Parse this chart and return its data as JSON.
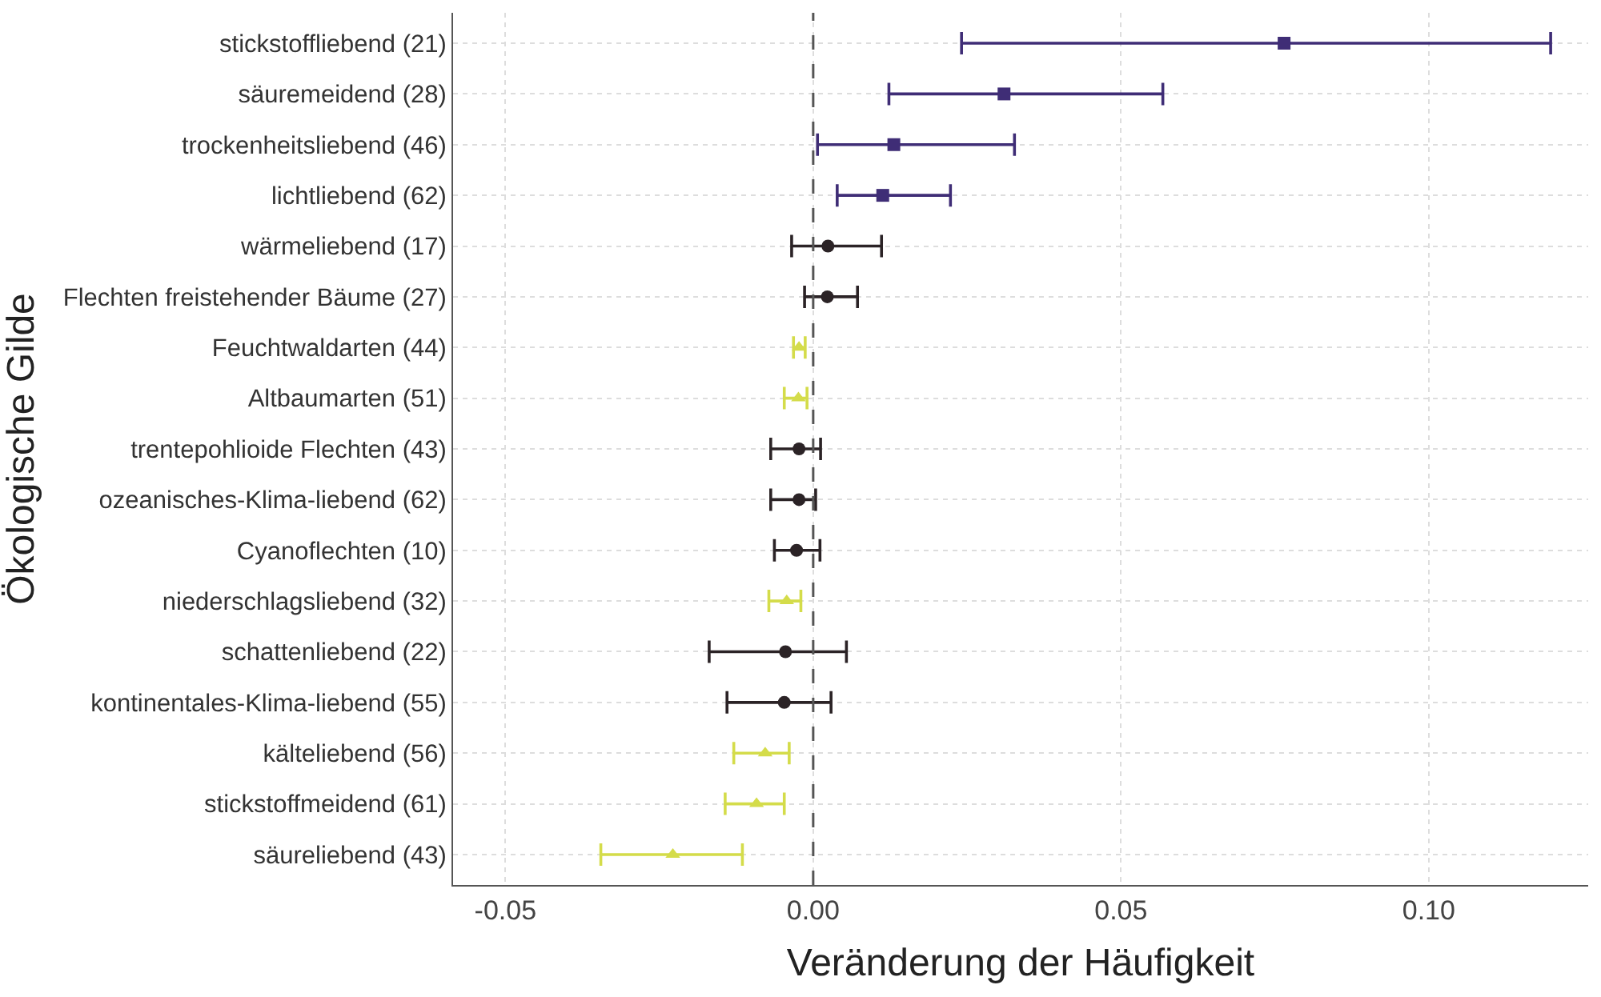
{
  "chart_data": {
    "type": "scatter",
    "orientation": "horizontal",
    "xlabel": "Veränderung der Häufigkeit",
    "ylabel": "Ökologische Gilde",
    "categories": [
      "stickstoffliebend (21)",
      "säuremeidend (28)",
      "trockenheitsliebend (46)",
      "lichtliebend (62)",
      "wärmeliebend (17)",
      "Flechten freistehender Bäume (27)",
      "Feuchtwaldarten (44)",
      "Altbaumarten (51)",
      "trentepohlioide Flechten (43)",
      "ozeanisches-Klima-liebend (62)",
      "Cyanoflechten (10)",
      "niederschlagsliebend (32)",
      "schattenliebend (22)",
      "kontinentales-Klima-liebend (55)",
      "kälteliebend (56)",
      "stickstoffmeidend (61)",
      "säureliebend (43)"
    ],
    "series": [
      {
        "color": "#3f2d76",
        "marker": "square",
        "values": [
          0.0765,
          0.031,
          0.0131,
          0.0113,
          null,
          null,
          null,
          null,
          null,
          null,
          null,
          null,
          null,
          null,
          null,
          null,
          null
        ],
        "errors": [
          [
            0.0241,
            0.1198
          ],
          [
            0.0123,
            0.0568
          ],
          [
            0.0007,
            0.0327
          ],
          [
            0.0039,
            0.0223
          ],
          null,
          null,
          null,
          null,
          null,
          null,
          null,
          null,
          null,
          null,
          null,
          null,
          null
        ]
      },
      {
        "color": "#2b2326",
        "marker": "circle",
        "values": [
          null,
          null,
          null,
          null,
          0.0024,
          0.0023,
          null,
          null,
          -0.0023,
          -0.0023,
          -0.0027,
          null,
          -0.0045,
          -0.0047,
          null,
          null,
          null
        ],
        "errors": [
          null,
          null,
          null,
          null,
          [
            -0.0035,
            0.0111
          ],
          [
            -0.0014,
            0.0072
          ],
          null,
          null,
          [
            -0.0069,
            0.0012
          ],
          [
            -0.0069,
            0.0004
          ],
          [
            -0.0063,
            0.0011
          ],
          null,
          [
            -0.0169,
            0.0054
          ],
          [
            -0.014,
            0.0029
          ],
          null,
          null,
          null
        ]
      },
      {
        "color": "#d4dc4a",
        "marker": "triangle",
        "values": [
          null,
          null,
          null,
          null,
          null,
          null,
          -0.0023,
          -0.0024,
          null,
          null,
          null,
          -0.0043,
          null,
          null,
          -0.0078,
          -0.0092,
          -0.0228
        ],
        "errors": [
          null,
          null,
          null,
          null,
          null,
          null,
          [
            -0.0032,
            -0.0013
          ],
          [
            -0.0047,
            -0.001
          ],
          null,
          null,
          null,
          [
            -0.0072,
            -0.002
          ],
          null,
          null,
          [
            -0.0129,
            -0.0039
          ],
          [
            -0.0143,
            -0.0047
          ],
          [
            -0.0345,
            -0.0115
          ]
        ]
      }
    ],
    "xlim": [
      -0.0585,
      0.1259
    ],
    "xticks": [
      {
        "value": -0.05,
        "label": "-0.05"
      },
      {
        "value": 0,
        "label": "0.00"
      },
      {
        "value": 0.05,
        "label": "0.05"
      },
      {
        "value": 0.1,
        "label": "0.10"
      }
    ],
    "ref_lines": [
      {
        "axis": "x",
        "value": 0,
        "line_style": "dashed",
        "color": "#555555"
      }
    ],
    "grid": true
  }
}
